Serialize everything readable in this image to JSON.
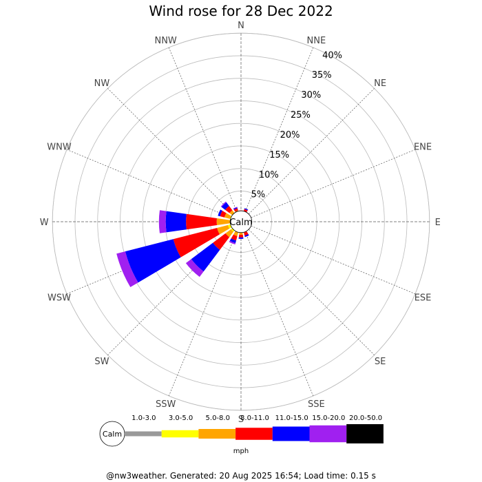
{
  "title": "Wind rose for 28 Dec 2022",
  "footer": "@nw3weather. Generated: 20 Aug 2025 16:54; Load time: 0.15 s",
  "chart_data": {
    "type": "windrose",
    "title": "Wind rose for 28 Dec 2022",
    "calm_label": "Calm",
    "unit_label": "mph",
    "directions": [
      "N",
      "NNE",
      "NE",
      "ENE",
      "E",
      "ESE",
      "SE",
      "SSE",
      "S",
      "SSW",
      "SW",
      "WSW",
      "W",
      "WNW",
      "NW",
      "NNW"
    ],
    "radial_ticks": [
      5,
      10,
      15,
      20,
      25,
      30,
      35,
      40
    ],
    "radial_tick_labels": [
      "5%",
      "10%",
      "15%",
      "20%",
      "25%",
      "30%",
      "35%",
      "40%"
    ],
    "rmax": 40,
    "calm_radius_percent": 1.8,
    "speed_bins": [
      {
        "label": "1.0-3.0",
        "color": "#999999"
      },
      {
        "label": "3.0-5.0",
        "color": "#ffff00"
      },
      {
        "label": "5.0-8.0",
        "color": "#ffa500"
      },
      {
        "label": "8.0-11.0",
        "color": "#ff0000"
      },
      {
        "label": "11.0-15.0",
        "color": "#0000ff"
      },
      {
        "label": "15.0-20.0",
        "color": "#a020f0"
      },
      {
        "label": "20.0-50.0",
        "color": "#000000"
      }
    ],
    "series": [
      {
        "direction": "N",
        "values": [
          0,
          0.1,
          0.2,
          0.4,
          0,
          0,
          0
        ]
      },
      {
        "direction": "NNE",
        "values": [
          0,
          0.2,
          0.3,
          0.6,
          0.2,
          0,
          0
        ]
      },
      {
        "direction": "NE",
        "values": [
          0,
          0,
          0,
          0,
          0,
          0,
          0
        ]
      },
      {
        "direction": "ENE",
        "values": [
          0,
          0,
          0,
          0,
          0,
          0,
          0
        ]
      },
      {
        "direction": "E",
        "values": [
          0,
          0,
          0,
          0,
          0,
          0,
          0
        ]
      },
      {
        "direction": "ESE",
        "values": [
          0,
          0,
          0,
          0.4,
          0,
          0,
          0
        ]
      },
      {
        "direction": "SE",
        "values": [
          0,
          0,
          0,
          0.3,
          0,
          0,
          0
        ]
      },
      {
        "direction": "SSE",
        "values": [
          0,
          0.2,
          0.5,
          0.7,
          0.3,
          0,
          0
        ]
      },
      {
        "direction": "S",
        "values": [
          0,
          0.3,
          0.8,
          0.6,
          0.3,
          0,
          0
        ]
      },
      {
        "direction": "SSW",
        "values": [
          0,
          0.5,
          1.0,
          1.0,
          0.6,
          0.3,
          0
        ]
      },
      {
        "direction": "SW",
        "values": [
          0,
          1.0,
          1.5,
          3.5,
          6.0,
          1.5,
          0
        ]
      },
      {
        "direction": "WSW",
        "values": [
          0,
          1.2,
          2.5,
          10.0,
          11.0,
          2.0,
          0
        ]
      },
      {
        "direction": "W",
        "values": [
          0,
          0.6,
          3.0,
          6.8,
          4.5,
          1.5,
          0
        ]
      },
      {
        "direction": "WNW",
        "values": [
          0,
          0.8,
          1.2,
          1.0,
          0.5,
          0,
          0
        ]
      },
      {
        "direction": "NW",
        "values": [
          0,
          0.6,
          0.8,
          1.2,
          1.0,
          0.2,
          0
        ]
      },
      {
        "direction": "NNW",
        "values": [
          0,
          0.3,
          0.5,
          0.5,
          0.2,
          0.1,
          0
        ]
      }
    ]
  }
}
